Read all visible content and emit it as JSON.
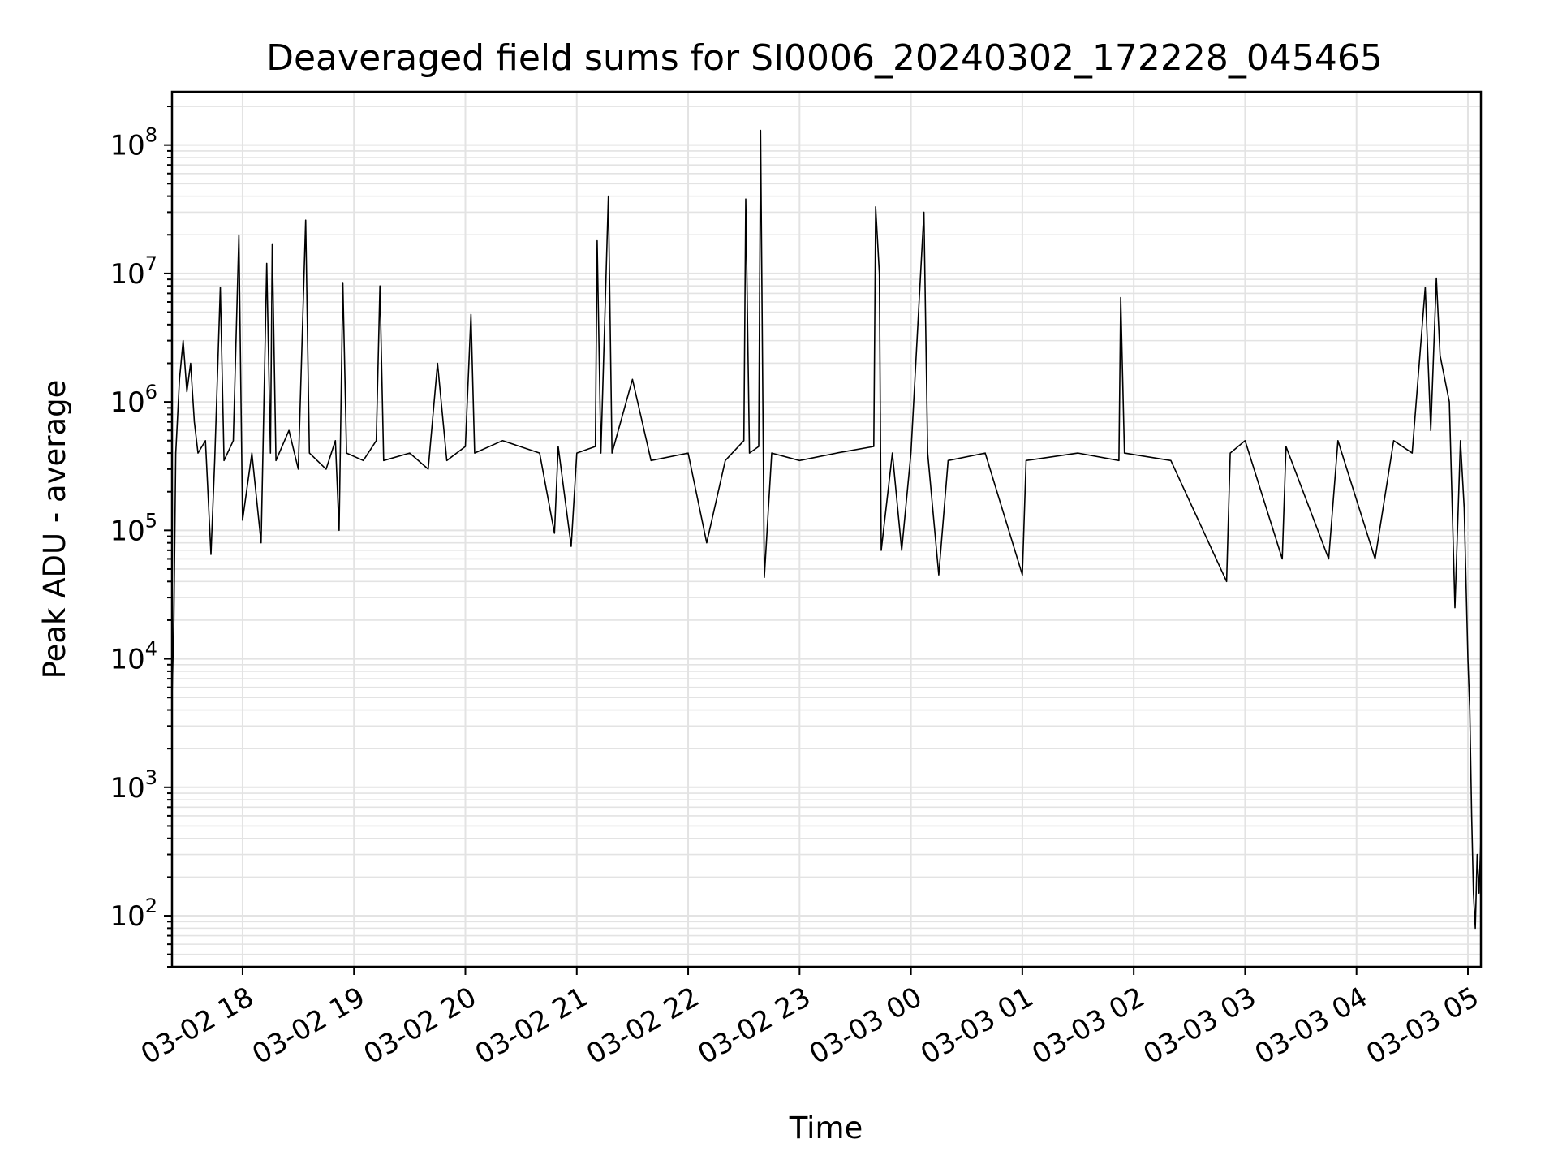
{
  "chart_data": {
    "type": "line",
    "title": "Deaveraged field sums for SI0006_20240302_172228_045465",
    "xlabel": "Time",
    "ylabel": "Peak ADU - average",
    "yscale": "log",
    "ylim": [
      40,
      260000000
    ],
    "xlim": [
      "2024-03-02 17:22",
      "2024-03-03 05:07"
    ],
    "grid": true,
    "x_ticks": [
      {
        "label": "03-02 18",
        "t": "2024-03-02 18:00"
      },
      {
        "label": "03-02 19",
        "t": "2024-03-02 19:00"
      },
      {
        "label": "03-02 20",
        "t": "2024-03-02 20:00"
      },
      {
        "label": "03-02 21",
        "t": "2024-03-02 21:00"
      },
      {
        "label": "03-02 22",
        "t": "2024-03-02 22:00"
      },
      {
        "label": "03-02 23",
        "t": "2024-03-02 23:00"
      },
      {
        "label": "03-03 00",
        "t": "2024-03-03 00:00"
      },
      {
        "label": "03-03 01",
        "t": "2024-03-03 01:00"
      },
      {
        "label": "03-03 02",
        "t": "2024-03-03 02:00"
      },
      {
        "label": "03-03 03",
        "t": "2024-03-03 03:00"
      },
      {
        "label": "03-03 04",
        "t": "2024-03-03 04:00"
      },
      {
        "label": "03-03 05",
        "t": "2024-03-03 05:00"
      }
    ],
    "y_ticks": [
      {
        "base": "10",
        "exp": "2",
        "value": 100
      },
      {
        "base": "10",
        "exp": "3",
        "value": 1000
      },
      {
        "base": "10",
        "exp": "4",
        "value": 10000
      },
      {
        "base": "10",
        "exp": "5",
        "value": 100000
      },
      {
        "base": "10",
        "exp": "6",
        "value": 1000000
      },
      {
        "base": "10",
        "exp": "7",
        "value": 10000000
      },
      {
        "base": "10",
        "exp": "8",
        "value": 100000000
      }
    ],
    "series": [
      {
        "line_color": "#000000",
        "points": [
          [
            "2024-03-02 17:22",
            5000
          ],
          [
            "2024-03-02 17:23",
            20000
          ],
          [
            "2024-03-02 17:24",
            400000
          ],
          [
            "2024-03-02 17:26",
            1500000
          ],
          [
            "2024-03-02 17:28",
            3000000
          ],
          [
            "2024-03-02 17:30",
            1200000
          ],
          [
            "2024-03-02 17:32",
            2000000
          ],
          [
            "2024-03-02 17:34",
            700000
          ],
          [
            "2024-03-02 17:36",
            400000
          ],
          [
            "2024-03-02 17:40",
            500000
          ],
          [
            "2024-03-02 17:43",
            65000
          ],
          [
            "2024-03-02 17:45",
            350000
          ],
          [
            "2024-03-02 17:48",
            7800000
          ],
          [
            "2024-03-02 17:50",
            350000
          ],
          [
            "2024-03-02 17:55",
            500000
          ],
          [
            "2024-03-02 17:58",
            20000000
          ],
          [
            "2024-03-02 18:00",
            120000
          ],
          [
            "2024-03-02 18:05",
            400000
          ],
          [
            "2024-03-02 18:10",
            80000
          ],
          [
            "2024-03-02 18:13",
            12000000
          ],
          [
            "2024-03-02 18:15",
            400000
          ],
          [
            "2024-03-02 18:16",
            17000000
          ],
          [
            "2024-03-02 18:18",
            350000
          ],
          [
            "2024-03-02 18:25",
            600000
          ],
          [
            "2024-03-02 18:30",
            300000
          ],
          [
            "2024-03-02 18:34",
            26000000
          ],
          [
            "2024-03-02 18:36",
            400000
          ],
          [
            "2024-03-02 18:45",
            300000
          ],
          [
            "2024-03-02 18:50",
            500000
          ],
          [
            "2024-03-02 18:52",
            100000
          ],
          [
            "2024-03-02 18:54",
            8500000
          ],
          [
            "2024-03-02 18:56",
            400000
          ],
          [
            "2024-03-02 19:05",
            350000
          ],
          [
            "2024-03-02 19:12",
            500000
          ],
          [
            "2024-03-02 19:14",
            8000000
          ],
          [
            "2024-03-02 19:16",
            350000
          ],
          [
            "2024-03-02 19:30",
            400000
          ],
          [
            "2024-03-02 19:40",
            300000
          ],
          [
            "2024-03-02 19:45",
            2000000
          ],
          [
            "2024-03-02 19:50",
            350000
          ],
          [
            "2024-03-02 20:00",
            450000
          ],
          [
            "2024-03-02 20:03",
            4800000
          ],
          [
            "2024-03-02 20:05",
            400000
          ],
          [
            "2024-03-02 20:20",
            500000
          ],
          [
            "2024-03-02 20:40",
            400000
          ],
          [
            "2024-03-02 20:48",
            95000
          ],
          [
            "2024-03-02 20:50",
            450000
          ],
          [
            "2024-03-02 20:57",
            75000
          ],
          [
            "2024-03-02 21:00",
            400000
          ],
          [
            "2024-03-02 21:10",
            450000
          ],
          [
            "2024-03-02 21:11",
            18000000
          ],
          [
            "2024-03-02 21:13",
            400000
          ],
          [
            "2024-03-02 21:17",
            40000000
          ],
          [
            "2024-03-02 21:19",
            400000
          ],
          [
            "2024-03-02 21:30",
            1500000
          ],
          [
            "2024-03-02 21:40",
            350000
          ],
          [
            "2024-03-02 22:00",
            400000
          ],
          [
            "2024-03-02 22:10",
            80000
          ],
          [
            "2024-03-02 22:20",
            350000
          ],
          [
            "2024-03-02 22:30",
            500000
          ],
          [
            "2024-03-02 22:31",
            38000000
          ],
          [
            "2024-03-02 22:33",
            400000
          ],
          [
            "2024-03-02 22:38",
            450000
          ],
          [
            "2024-03-02 22:39",
            130000000
          ],
          [
            "2024-03-02 22:41",
            43000
          ],
          [
            "2024-03-02 22:45",
            400000
          ],
          [
            "2024-03-02 23:00",
            350000
          ],
          [
            "2024-03-02 23:20",
            400000
          ],
          [
            "2024-03-02 23:40",
            450000
          ],
          [
            "2024-03-02 23:41",
            33000000
          ],
          [
            "2024-03-02 23:43",
            10000000
          ],
          [
            "2024-03-02 23:44",
            70000
          ],
          [
            "2024-03-02 23:50",
            400000
          ],
          [
            "2024-03-02 23:55",
            70000
          ],
          [
            "2024-03-03 00:00",
            400000
          ],
          [
            "2024-03-03 00:07",
            30000000
          ],
          [
            "2024-03-03 00:09",
            400000
          ],
          [
            "2024-03-03 00:15",
            45000
          ],
          [
            "2024-03-03 00:20",
            350000
          ],
          [
            "2024-03-03 00:40",
            400000
          ],
          [
            "2024-03-03 01:00",
            45000
          ],
          [
            "2024-03-03 01:02",
            350000
          ],
          [
            "2024-03-03 01:30",
            400000
          ],
          [
            "2024-03-03 01:52",
            350000
          ],
          [
            "2024-03-03 01:53",
            6500000
          ],
          [
            "2024-03-03 01:55",
            400000
          ],
          [
            "2024-03-03 02:20",
            350000
          ],
          [
            "2024-03-03 02:50",
            40000
          ],
          [
            "2024-03-03 02:52",
            400000
          ],
          [
            "2024-03-03 03:00",
            500000
          ],
          [
            "2024-03-03 03:20",
            60000
          ],
          [
            "2024-03-03 03:22",
            450000
          ],
          [
            "2024-03-03 03:45",
            60000
          ],
          [
            "2024-03-03 03:50",
            500000
          ],
          [
            "2024-03-03 04:10",
            60000
          ],
          [
            "2024-03-03 04:20",
            500000
          ],
          [
            "2024-03-03 04:30",
            400000
          ],
          [
            "2024-03-03 04:37",
            7800000
          ],
          [
            "2024-03-03 04:40",
            600000
          ],
          [
            "2024-03-03 04:43",
            9200000
          ],
          [
            "2024-03-03 04:45",
            2300000
          ],
          [
            "2024-03-03 04:50",
            1000000
          ],
          [
            "2024-03-03 04:53",
            25000
          ],
          [
            "2024-03-03 04:56",
            500000
          ],
          [
            "2024-03-03 04:58",
            150000
          ],
          [
            "2024-03-03 05:00",
            10000
          ],
          [
            "2024-03-03 05:01",
            4000
          ],
          [
            "2024-03-03 05:02",
            600
          ],
          [
            "2024-03-03 05:03",
            150
          ],
          [
            "2024-03-03 05:04",
            80
          ],
          [
            "2024-03-03 05:05",
            300
          ],
          [
            "2024-03-03 05:06",
            150
          ],
          [
            "2024-03-03 05:07",
            400
          ]
        ]
      }
    ]
  }
}
